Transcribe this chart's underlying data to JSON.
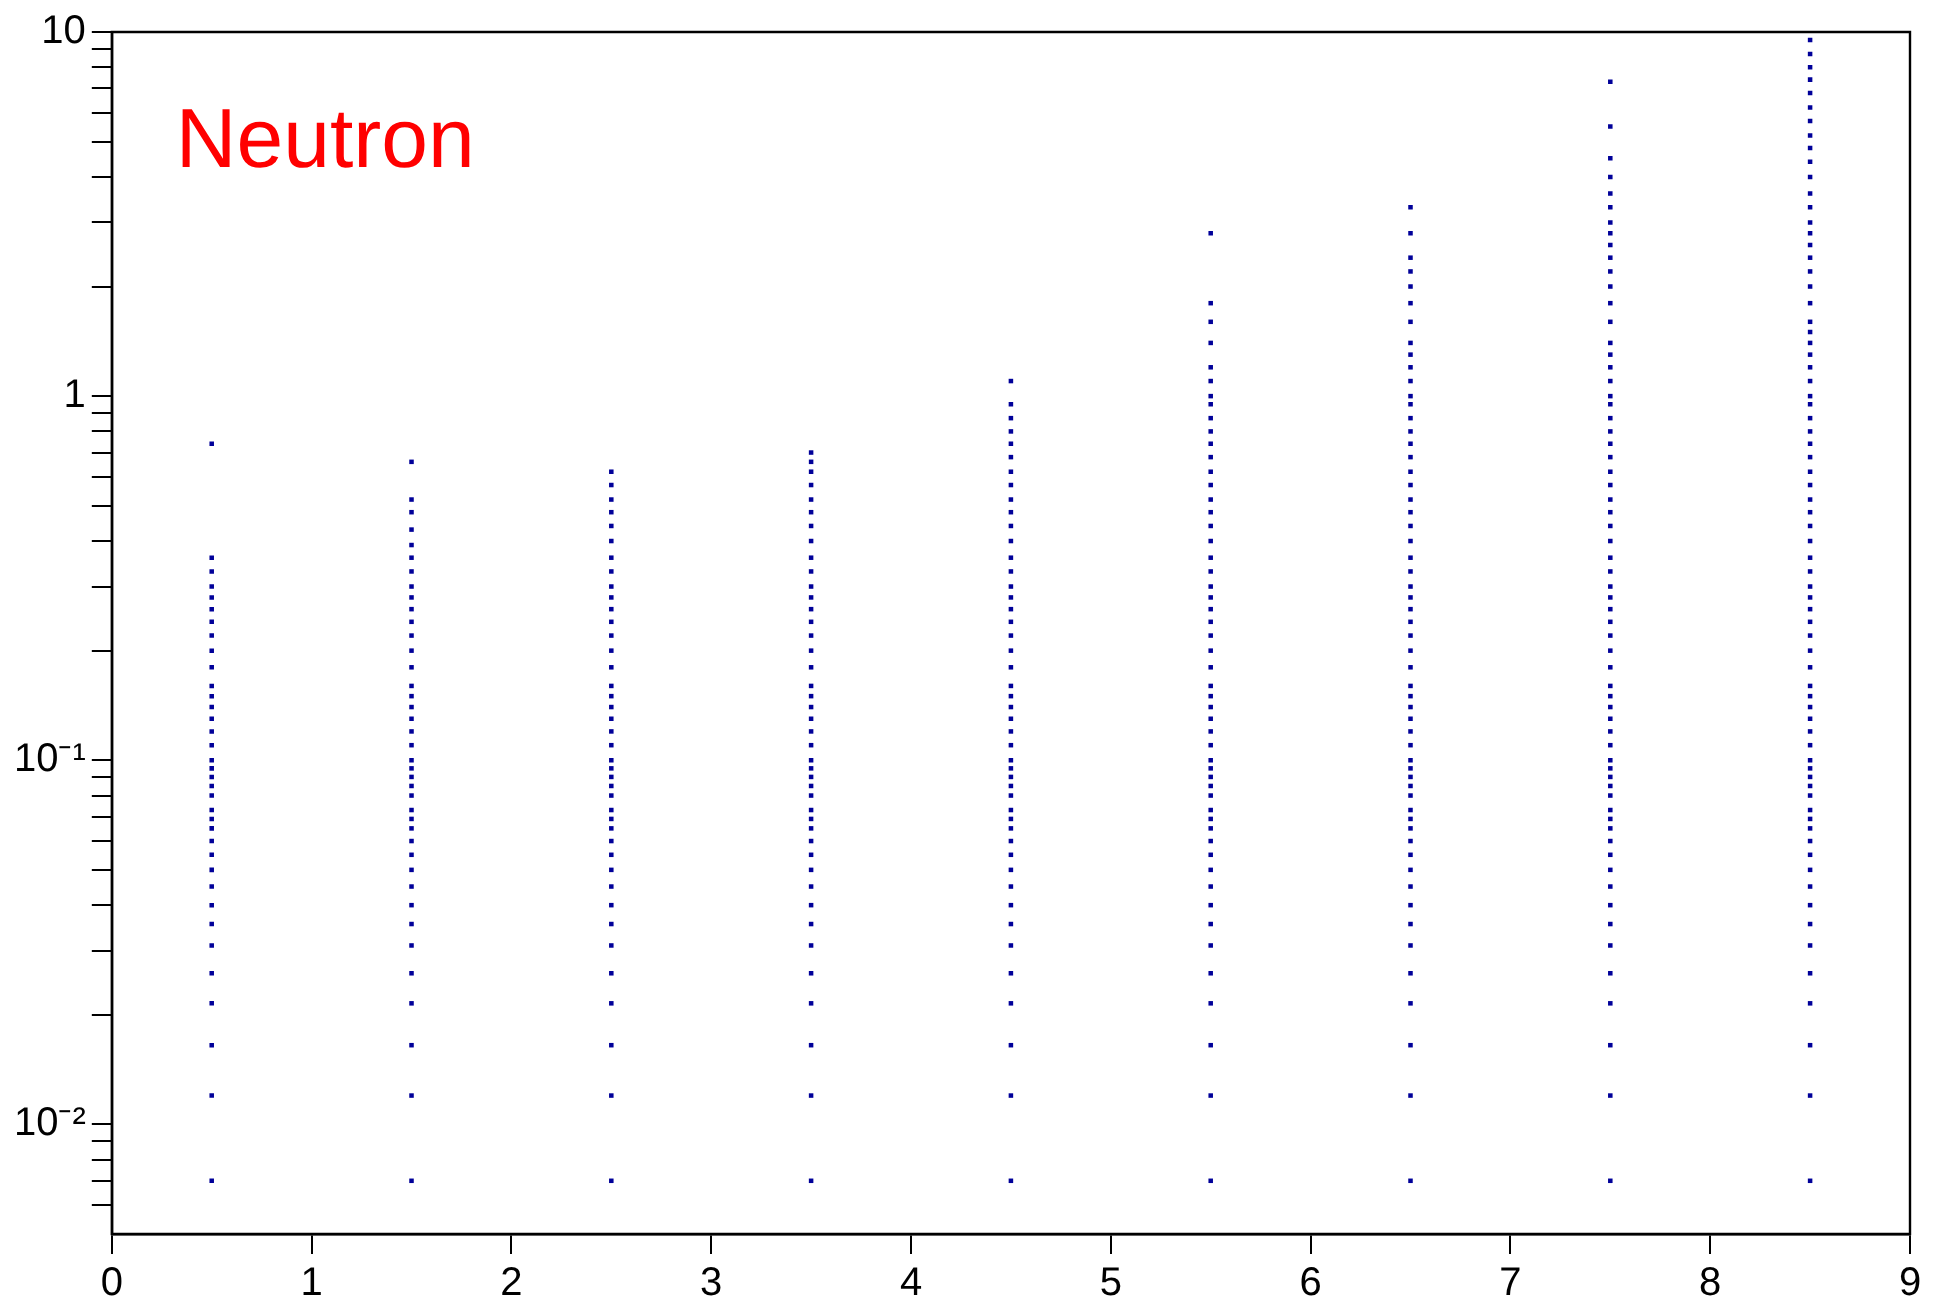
{
  "chart_data": {
    "type": "scatter",
    "annotations": [
      "Neutron"
    ],
    "log": "y",
    "grid": false,
    "legend": false,
    "marker": "square",
    "xlim": [
      0,
      9
    ],
    "xticks": [
      0,
      1,
      2,
      3,
      4,
      5,
      6,
      7,
      8,
      9
    ],
    "ylim": [
      0.005,
      10
    ],
    "yticks": [
      {
        "value": 0.006,
        "label": null
      },
      {
        "value": 0.007,
        "label": null
      },
      {
        "value": 0.008,
        "label": null
      },
      {
        "value": 0.009,
        "label": null
      },
      {
        "value": 0.01,
        "label": "10⁻²"
      },
      {
        "value": 0.02,
        "label": null
      },
      {
        "value": 0.03,
        "label": null
      },
      {
        "value": 0.04,
        "label": null
      },
      {
        "value": 0.05,
        "label": null
      },
      {
        "value": 0.06,
        "label": null
      },
      {
        "value": 0.07,
        "label": null
      },
      {
        "value": 0.08,
        "label": null
      },
      {
        "value": 0.09,
        "label": null
      },
      {
        "value": 0.1,
        "label": "10⁻¹"
      },
      {
        "value": 0.2,
        "label": null
      },
      {
        "value": 0.3,
        "label": null
      },
      {
        "value": 0.4,
        "label": null
      },
      {
        "value": 0.5,
        "label": null
      },
      {
        "value": 0.6,
        "label": null
      },
      {
        "value": 0.7,
        "label": null
      },
      {
        "value": 0.8,
        "label": null
      },
      {
        "value": 0.9,
        "label": null
      },
      1,
      {
        "value": 2,
        "label": null
      },
      {
        "value": 3,
        "label": null
      },
      {
        "value": 4,
        "label": null
      },
      {
        "value": 5,
        "label": null
      },
      {
        "value": 6,
        "label": null
      },
      {
        "value": 7,
        "label": null
      },
      {
        "value": 8,
        "label": null
      },
      {
        "value": 9,
        "label": null
      },
      10
    ],
    "series": [
      {
        "color": "#000099",
        "x": [
          0.5,
          0.5,
          0.5,
          0.5,
          0.5,
          0.5,
          0.5,
          0.5,
          0.5,
          0.5,
          0.5,
          0.5,
          0.5,
          0.5,
          0.5,
          0.5,
          0.5,
          0.5,
          0.5,
          0.5,
          0.5,
          0.5,
          0.5,
          0.5,
          0.5,
          0.5,
          0.5,
          0.5,
          0.5,
          0.5,
          0.5,
          0.5,
          0.5,
          0.5,
          0.5,
          0.5
        ],
        "values": [
          0.007,
          0.012,
          0.0165,
          0.0215,
          0.026,
          0.031,
          0.0355,
          0.04,
          0.045,
          0.05,
          0.055,
          0.06,
          0.065,
          0.069,
          0.073,
          0.08,
          0.085,
          0.09,
          0.095,
          0.1,
          0.11,
          0.12,
          0.13,
          0.14,
          0.15,
          0.16,
          0.18,
          0.2,
          0.22,
          0.24,
          0.26,
          0.28,
          0.3,
          0.33,
          0.36,
          0.74
        ]
      },
      {
        "color": "#000099",
        "x": [
          1.5,
          1.5,
          1.5,
          1.5,
          1.5,
          1.5,
          1.5,
          1.5,
          1.5,
          1.5,
          1.5,
          1.5,
          1.5,
          1.5,
          1.5,
          1.5,
          1.5,
          1.5,
          1.5,
          1.5,
          1.5,
          1.5,
          1.5,
          1.5,
          1.5,
          1.5,
          1.5,
          1.5,
          1.5,
          1.5,
          1.5,
          1.5,
          1.5,
          1.5,
          1.5,
          1.5,
          1.5,
          1.5,
          1.5,
          1.5
        ],
        "values": [
          0.007,
          0.012,
          0.0165,
          0.0215,
          0.026,
          0.031,
          0.0355,
          0.04,
          0.045,
          0.05,
          0.055,
          0.06,
          0.065,
          0.069,
          0.073,
          0.08,
          0.085,
          0.09,
          0.095,
          0.1,
          0.11,
          0.12,
          0.13,
          0.14,
          0.15,
          0.16,
          0.18,
          0.2,
          0.22,
          0.24,
          0.26,
          0.28,
          0.3,
          0.33,
          0.36,
          0.39,
          0.43,
          0.48,
          0.52,
          0.66
        ]
      },
      {
        "color": "#000099",
        "x": [
          2.5,
          2.5,
          2.5,
          2.5,
          2.5,
          2.5,
          2.5,
          2.5,
          2.5,
          2.5,
          2.5,
          2.5,
          2.5,
          2.5,
          2.5,
          2.5,
          2.5,
          2.5,
          2.5,
          2.5,
          2.5,
          2.5,
          2.5,
          2.5,
          2.5,
          2.5,
          2.5,
          2.5,
          2.5,
          2.5,
          2.5,
          2.5,
          2.5,
          2.5,
          2.5,
          2.5,
          2.5,
          2.5,
          2.5,
          2.5,
          2.5
        ],
        "values": [
          0.007,
          0.012,
          0.0165,
          0.0215,
          0.026,
          0.031,
          0.0355,
          0.04,
          0.045,
          0.05,
          0.055,
          0.06,
          0.065,
          0.069,
          0.073,
          0.08,
          0.085,
          0.09,
          0.095,
          0.1,
          0.11,
          0.12,
          0.13,
          0.14,
          0.15,
          0.16,
          0.18,
          0.2,
          0.22,
          0.24,
          0.26,
          0.28,
          0.3,
          0.33,
          0.36,
          0.4,
          0.44,
          0.48,
          0.52,
          0.57,
          0.62
        ]
      },
      {
        "color": "#000099",
        "x": [
          3.5,
          3.5,
          3.5,
          3.5,
          3.5,
          3.5,
          3.5,
          3.5,
          3.5,
          3.5,
          3.5,
          3.5,
          3.5,
          3.5,
          3.5,
          3.5,
          3.5,
          3.5,
          3.5,
          3.5,
          3.5,
          3.5,
          3.5,
          3.5,
          3.5,
          3.5,
          3.5,
          3.5,
          3.5,
          3.5,
          3.5,
          3.5,
          3.5,
          3.5,
          3.5,
          3.5,
          3.5,
          3.5,
          3.5,
          3.5,
          3.5,
          3.5,
          3.5
        ],
        "values": [
          0.007,
          0.012,
          0.0165,
          0.0215,
          0.026,
          0.031,
          0.0355,
          0.04,
          0.045,
          0.05,
          0.055,
          0.06,
          0.065,
          0.069,
          0.073,
          0.08,
          0.085,
          0.09,
          0.095,
          0.1,
          0.11,
          0.12,
          0.13,
          0.14,
          0.15,
          0.16,
          0.18,
          0.2,
          0.22,
          0.24,
          0.26,
          0.28,
          0.3,
          0.33,
          0.36,
          0.4,
          0.44,
          0.48,
          0.52,
          0.57,
          0.62,
          0.66,
          0.7
        ]
      },
      {
        "color": "#000099",
        "x": [
          4.5,
          4.5,
          4.5,
          4.5,
          4.5,
          4.5,
          4.5,
          4.5,
          4.5,
          4.5,
          4.5,
          4.5,
          4.5,
          4.5,
          4.5,
          4.5,
          4.5,
          4.5,
          4.5,
          4.5,
          4.5,
          4.5,
          4.5,
          4.5,
          4.5,
          4.5,
          4.5,
          4.5,
          4.5,
          4.5,
          4.5,
          4.5,
          4.5,
          4.5,
          4.5,
          4.5,
          4.5,
          4.5,
          4.5,
          4.5,
          4.5,
          4.5,
          4.5,
          4.5,
          4.5,
          4.5,
          4.5
        ],
        "values": [
          0.007,
          0.012,
          0.0165,
          0.0215,
          0.026,
          0.031,
          0.0355,
          0.04,
          0.045,
          0.05,
          0.055,
          0.06,
          0.065,
          0.069,
          0.073,
          0.08,
          0.085,
          0.09,
          0.095,
          0.1,
          0.11,
          0.12,
          0.13,
          0.14,
          0.15,
          0.16,
          0.18,
          0.2,
          0.22,
          0.24,
          0.26,
          0.28,
          0.3,
          0.33,
          0.36,
          0.4,
          0.44,
          0.48,
          0.52,
          0.57,
          0.62,
          0.68,
          0.74,
          0.8,
          0.87,
          0.95,
          1.1
        ]
      },
      {
        "color": "#000099",
        "x": [
          5.5,
          5.5,
          5.5,
          5.5,
          5.5,
          5.5,
          5.5,
          5.5,
          5.5,
          5.5,
          5.5,
          5.5,
          5.5,
          5.5,
          5.5,
          5.5,
          5.5,
          5.5,
          5.5,
          5.5,
          5.5,
          5.5,
          5.5,
          5.5,
          5.5,
          5.5,
          5.5,
          5.5,
          5.5,
          5.5,
          5.5,
          5.5,
          5.5,
          5.5,
          5.5,
          5.5,
          5.5,
          5.5,
          5.5,
          5.5,
          5.5,
          5.5,
          5.5,
          5.5,
          5.5,
          5.5,
          5.5,
          5.5,
          5.5,
          5.5,
          5.5,
          5.5,
          5.5
        ],
        "values": [
          0.007,
          0.012,
          0.0165,
          0.0215,
          0.026,
          0.031,
          0.0355,
          0.04,
          0.045,
          0.05,
          0.055,
          0.06,
          0.065,
          0.069,
          0.073,
          0.08,
          0.085,
          0.09,
          0.095,
          0.1,
          0.11,
          0.12,
          0.13,
          0.14,
          0.15,
          0.16,
          0.18,
          0.2,
          0.22,
          0.24,
          0.26,
          0.28,
          0.3,
          0.33,
          0.36,
          0.4,
          0.44,
          0.48,
          0.52,
          0.57,
          0.62,
          0.68,
          0.74,
          0.8,
          0.87,
          0.95,
          1.0,
          1.1,
          1.2,
          1.4,
          1.6,
          1.8,
          2.8
        ]
      },
      {
        "color": "#000099",
        "x": [
          6.5,
          6.5,
          6.5,
          6.5,
          6.5,
          6.5,
          6.5,
          6.5,
          6.5,
          6.5,
          6.5,
          6.5,
          6.5,
          6.5,
          6.5,
          6.5,
          6.5,
          6.5,
          6.5,
          6.5,
          6.5,
          6.5,
          6.5,
          6.5,
          6.5,
          6.5,
          6.5,
          6.5,
          6.5,
          6.5,
          6.5,
          6.5,
          6.5,
          6.5,
          6.5,
          6.5,
          6.5,
          6.5,
          6.5,
          6.5,
          6.5,
          6.5,
          6.5,
          6.5,
          6.5,
          6.5,
          6.5,
          6.5,
          6.5,
          6.5,
          6.5,
          6.5,
          6.5,
          6.5,
          6.5,
          6.5,
          6.5,
          6.5
        ],
        "values": [
          0.007,
          0.012,
          0.0165,
          0.0215,
          0.026,
          0.031,
          0.0355,
          0.04,
          0.045,
          0.05,
          0.055,
          0.06,
          0.065,
          0.069,
          0.073,
          0.08,
          0.085,
          0.09,
          0.095,
          0.1,
          0.11,
          0.12,
          0.13,
          0.14,
          0.15,
          0.16,
          0.18,
          0.2,
          0.22,
          0.24,
          0.26,
          0.28,
          0.3,
          0.33,
          0.36,
          0.4,
          0.44,
          0.48,
          0.52,
          0.57,
          0.62,
          0.68,
          0.74,
          0.8,
          0.87,
          0.95,
          1.0,
          1.1,
          1.2,
          1.3,
          1.4,
          1.6,
          1.8,
          2.0,
          2.2,
          2.4,
          2.8,
          3.3
        ]
      },
      {
        "color": "#000099",
        "x": [
          7.5,
          7.5,
          7.5,
          7.5,
          7.5,
          7.5,
          7.5,
          7.5,
          7.5,
          7.5,
          7.5,
          7.5,
          7.5,
          7.5,
          7.5,
          7.5,
          7.5,
          7.5,
          7.5,
          7.5,
          7.5,
          7.5,
          7.5,
          7.5,
          7.5,
          7.5,
          7.5,
          7.5,
          7.5,
          7.5,
          7.5,
          7.5,
          7.5,
          7.5,
          7.5,
          7.5,
          7.5,
          7.5,
          7.5,
          7.5,
          7.5,
          7.5,
          7.5,
          7.5,
          7.5,
          7.5,
          7.5,
          7.5,
          7.5,
          7.5,
          7.5,
          7.5,
          7.5,
          7.5,
          7.5,
          7.5,
          7.5,
          7.5,
          7.5,
          7.5,
          7.5,
          7.5,
          7.5,
          7.5,
          7.5
        ],
        "values": [
          0.007,
          0.012,
          0.0165,
          0.0215,
          0.026,
          0.031,
          0.0355,
          0.04,
          0.045,
          0.05,
          0.055,
          0.06,
          0.065,
          0.069,
          0.073,
          0.08,
          0.085,
          0.09,
          0.095,
          0.1,
          0.11,
          0.12,
          0.13,
          0.14,
          0.15,
          0.16,
          0.18,
          0.2,
          0.22,
          0.24,
          0.26,
          0.28,
          0.3,
          0.33,
          0.36,
          0.4,
          0.44,
          0.48,
          0.52,
          0.57,
          0.62,
          0.68,
          0.74,
          0.8,
          0.87,
          0.95,
          1.0,
          1.1,
          1.2,
          1.3,
          1.4,
          1.6,
          1.8,
          2.0,
          2.2,
          2.4,
          2.6,
          2.8,
          3.0,
          3.3,
          3.6,
          4.0,
          4.5,
          5.5,
          7.3
        ]
      },
      {
        "color": "#000099",
        "x": [
          8.5,
          8.5,
          8.5,
          8.5,
          8.5,
          8.5,
          8.5,
          8.5,
          8.5,
          8.5,
          8.5,
          8.5,
          8.5,
          8.5,
          8.5,
          8.5,
          8.5,
          8.5,
          8.5,
          8.5,
          8.5,
          8.5,
          8.5,
          8.5,
          8.5,
          8.5,
          8.5,
          8.5,
          8.5,
          8.5,
          8.5,
          8.5,
          8.5,
          8.5,
          8.5,
          8.5,
          8.5,
          8.5,
          8.5,
          8.5,
          8.5,
          8.5,
          8.5,
          8.5,
          8.5,
          8.5,
          8.5,
          8.5,
          8.5,
          8.5,
          8.5,
          8.5,
          8.5,
          8.5,
          8.5,
          8.5,
          8.5,
          8.5,
          8.5,
          8.5,
          8.5,
          8.5,
          8.5,
          8.5,
          8.5,
          8.5,
          8.5,
          8.5,
          8.5,
          8.5,
          8.5,
          8.5,
          8.5
        ],
        "values": [
          0.007,
          0.012,
          0.0165,
          0.0215,
          0.026,
          0.031,
          0.0355,
          0.04,
          0.045,
          0.05,
          0.055,
          0.06,
          0.065,
          0.069,
          0.073,
          0.08,
          0.085,
          0.09,
          0.095,
          0.1,
          0.11,
          0.12,
          0.13,
          0.14,
          0.15,
          0.16,
          0.18,
          0.2,
          0.22,
          0.24,
          0.26,
          0.28,
          0.3,
          0.33,
          0.36,
          0.4,
          0.44,
          0.48,
          0.52,
          0.57,
          0.62,
          0.68,
          0.74,
          0.8,
          0.87,
          0.95,
          1.0,
          1.1,
          1.2,
          1.3,
          1.4,
          1.5,
          1.6,
          1.8,
          2.0,
          2.2,
          2.4,
          2.6,
          2.8,
          3.0,
          3.3,
          3.6,
          4.0,
          4.4,
          4.8,
          5.2,
          5.7,
          6.2,
          6.8,
          7.4,
          8.0,
          8.7,
          9.5
        ]
      }
    ]
  }
}
